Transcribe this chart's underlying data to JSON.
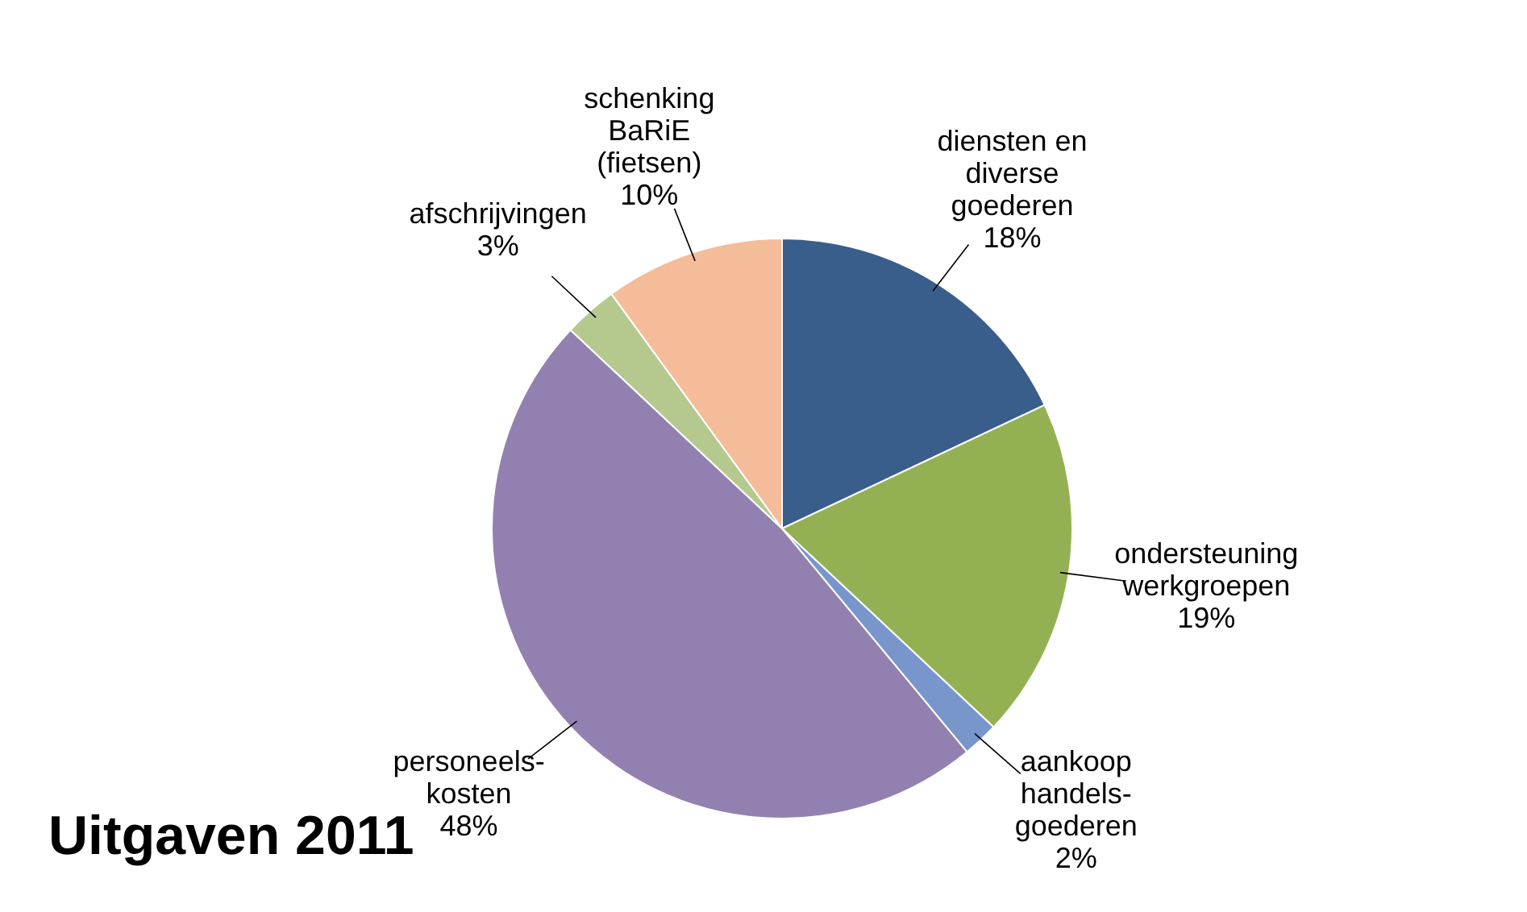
{
  "chart_data": {
    "type": "pie",
    "title": "Uitgaven 2011",
    "categories": [
      "diensten en\ndiverse\ngoederen",
      "ondersteuning\nwerkgroepen",
      "aankoop\nhandels-\ngoederen",
      "personeels-\nkosten",
      "afschrijvingen",
      "schenking\nBaRiE\n(fietsen)"
    ],
    "values": [
      18,
      19,
      2,
      48,
      3,
      10
    ],
    "value_labels": [
      "18%",
      "19%",
      "2%",
      "48%",
      "3%",
      "10%"
    ],
    "colors": [
      "#3a5e8c",
      "#93b153",
      "#7896cc",
      "#9281b0",
      "#b5c98f",
      "#f5bc9a"
    ]
  }
}
